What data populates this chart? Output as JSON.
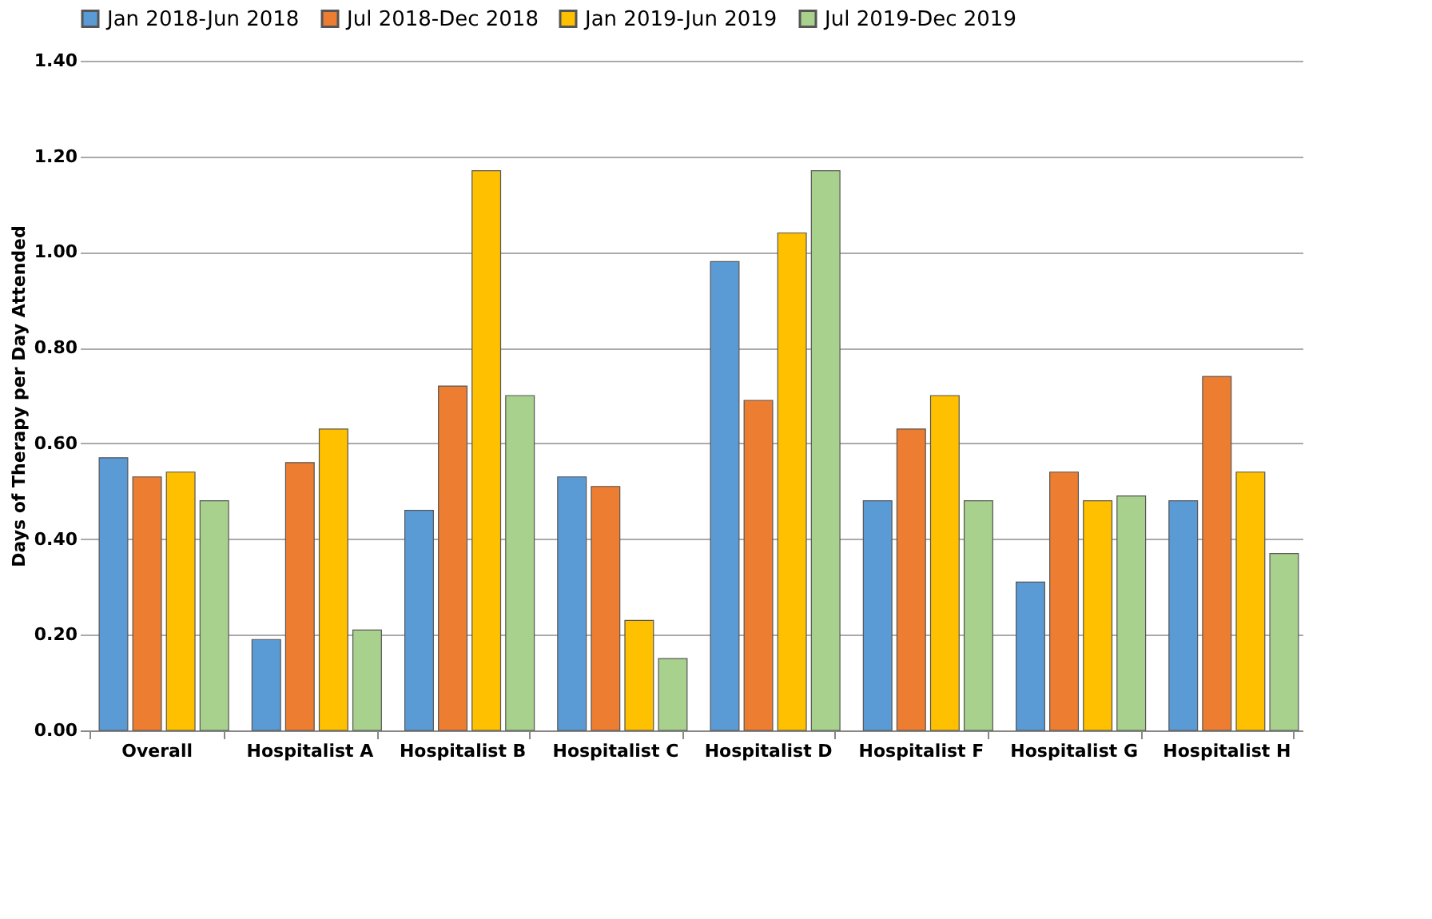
{
  "chart_data": {
    "type": "bar",
    "ylabel": "Days of Therapy per Day Attended",
    "categories": [
      "Overall",
      "Hospitalist A",
      "Hospitalist B",
      "Hospitalist C",
      "Hospitalist D",
      "Hospitalist F",
      "Hospitalist G",
      "Hospitalist H"
    ],
    "series": [
      {
        "name": "Jan 2018-Jun 2018",
        "color": "#5b9bd5",
        "values": [
          0.57,
          0.19,
          0.46,
          0.53,
          0.98,
          0.48,
          0.31,
          0.48
        ]
      },
      {
        "name": "Jul 2018-Dec 2018",
        "color": "#ed7d31",
        "values": [
          0.53,
          0.56,
          0.72,
          0.51,
          0.69,
          0.63,
          0.54,
          0.74
        ]
      },
      {
        "name": "Jan 2019-Jun 2019",
        "color": "#ffc000",
        "values": [
          0.54,
          0.63,
          1.17,
          0.23,
          1.04,
          0.7,
          0.48,
          0.54
        ]
      },
      {
        "name": "Jul 2019-Dec 2019",
        "color": "#a9d18e",
        "values": [
          0.48,
          0.21,
          0.7,
          0.15,
          1.17,
          0.48,
          0.49,
          0.37
        ]
      }
    ],
    "ylim": [
      0,
      1.4
    ],
    "yticks": [
      {
        "value": 0,
        "label": "0.00"
      },
      {
        "value": 0.2,
        "label": "0.20"
      },
      {
        "value": 0.4,
        "label": "0.40"
      },
      {
        "value": 0.6,
        "label": "0.60"
      },
      {
        "value": 0.8,
        "label": "0.80"
      },
      {
        "value": 1.0,
        "label": "1.00"
      },
      {
        "value": 1.2,
        "label": "1.20"
      },
      {
        "value": 1.4,
        "label": "1.40"
      }
    ],
    "grid": "y",
    "legend": "top"
  }
}
